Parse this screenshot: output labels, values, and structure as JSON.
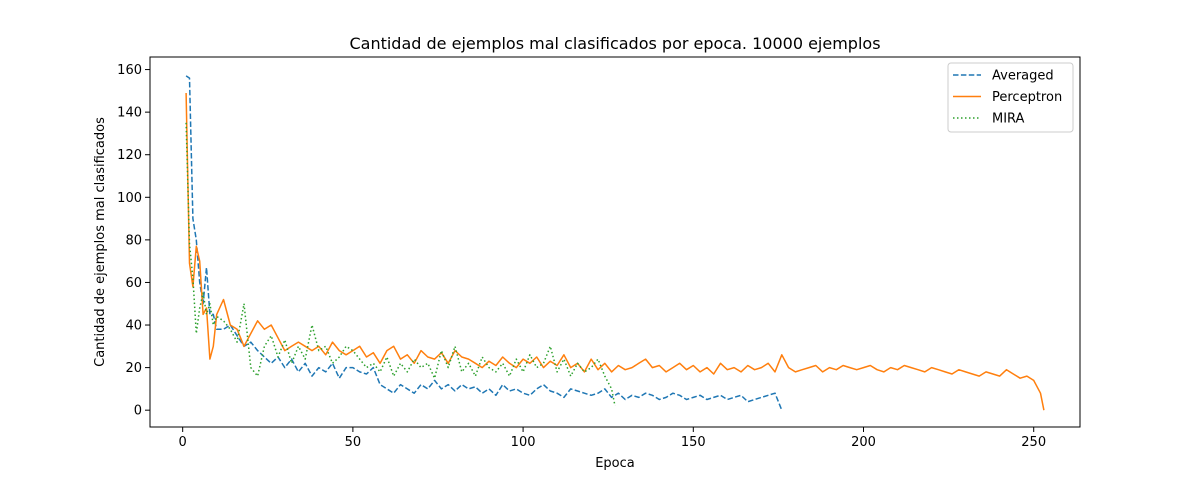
{
  "chart_data": {
    "type": "line",
    "title": "Cantidad de ejemplos mal clasificados por epoca. 10000 ejemplos",
    "xlabel": "Epoca",
    "ylabel": "Cantidad de ejemplos mal clasificados",
    "xlim": [
      -9.6,
      263.6
    ],
    "ylim": [
      -7.9,
      165.9
    ],
    "xticks": [
      0,
      50,
      100,
      150,
      200,
      250
    ],
    "yticks": [
      0,
      20,
      40,
      60,
      80,
      100,
      120,
      140,
      160
    ],
    "grid": false,
    "legend_position": "top-right",
    "series": [
      {
        "name": "Averaged",
        "color": "#1f77b4",
        "dash": "dashed",
        "x": [
          1,
          2,
          3,
          4,
          5,
          6,
          7,
          8,
          9,
          10,
          12,
          14,
          16,
          18,
          20,
          22,
          24,
          26,
          28,
          30,
          32,
          34,
          36,
          38,
          40,
          42,
          44,
          46,
          48,
          50,
          52,
          54,
          56,
          58,
          60,
          62,
          64,
          66,
          68,
          70,
          72,
          74,
          76,
          78,
          80,
          82,
          84,
          86,
          88,
          90,
          92,
          94,
          96,
          98,
          100,
          102,
          104,
          106,
          108,
          110,
          112,
          114,
          116,
          118,
          120,
          122,
          124,
          126,
          128,
          130,
          132,
          134,
          136,
          138,
          140,
          142,
          144,
          146,
          148,
          150,
          152,
          154,
          156,
          158,
          160,
          162,
          164,
          166,
          168,
          170,
          172,
          174,
          176
        ],
        "y": [
          157,
          156,
          90,
          80,
          60,
          50,
          67,
          45,
          45,
          38,
          38,
          40,
          35,
          30,
          32,
          28,
          25,
          22,
          25,
          20,
          24,
          18,
          22,
          16,
          20,
          18,
          22,
          15,
          20,
          20,
          18,
          17,
          20,
          12,
          10,
          8,
          12,
          10,
          8,
          12,
          10,
          14,
          10,
          12,
          9,
          12,
          10,
          11,
          8,
          10,
          7,
          12,
          9,
          10,
          8,
          7,
          10,
          12,
          9,
          8,
          6,
          10,
          9,
          8,
          7,
          8,
          10,
          6,
          8,
          5,
          7,
          6,
          8,
          7,
          5,
          6,
          8,
          7,
          5,
          6,
          7,
          5,
          6,
          7,
          5,
          6,
          7,
          4,
          5,
          6,
          7,
          8,
          0
        ]
      },
      {
        "name": "Perceptron",
        "color": "#ff7f0e",
        "dash": "solid",
        "x": [
          1,
          2,
          3,
          4,
          5,
          6,
          7,
          8,
          9,
          10,
          12,
          14,
          16,
          18,
          20,
          22,
          24,
          26,
          28,
          30,
          32,
          34,
          36,
          38,
          40,
          42,
          44,
          46,
          48,
          50,
          52,
          54,
          56,
          58,
          60,
          62,
          64,
          66,
          68,
          70,
          72,
          74,
          76,
          78,
          80,
          82,
          84,
          86,
          88,
          90,
          92,
          94,
          96,
          98,
          100,
          102,
          104,
          106,
          108,
          110,
          112,
          114,
          116,
          118,
          120,
          122,
          124,
          126,
          128,
          130,
          132,
          134,
          136,
          138,
          140,
          142,
          144,
          146,
          148,
          150,
          152,
          154,
          156,
          158,
          160,
          162,
          164,
          166,
          168,
          170,
          172,
          174,
          176,
          178,
          180,
          182,
          184,
          186,
          188,
          190,
          192,
          194,
          196,
          198,
          200,
          202,
          204,
          206,
          208,
          210,
          212,
          214,
          216,
          218,
          220,
          222,
          224,
          226,
          228,
          230,
          232,
          234,
          236,
          238,
          240,
          242,
          244,
          246,
          248,
          250,
          252,
          253
        ],
        "y": [
          149,
          69,
          58,
          77,
          70,
          45,
          48,
          24,
          30,
          45,
          52,
          40,
          38,
          30,
          36,
          42,
          38,
          40,
          34,
          28,
          30,
          32,
          30,
          28,
          30,
          26,
          32,
          28,
          26,
          28,
          30,
          25,
          27,
          22,
          28,
          30,
          24,
          26,
          22,
          28,
          25,
          24,
          27,
          22,
          28,
          25,
          24,
          22,
          20,
          23,
          21,
          25,
          22,
          20,
          24,
          22,
          25,
          20,
          23,
          21,
          26,
          20,
          22,
          18,
          24,
          19,
          22,
          18,
          21,
          19,
          20,
          22,
          24,
          20,
          21,
          18,
          20,
          22,
          19,
          21,
          18,
          20,
          17,
          22,
          19,
          20,
          18,
          21,
          19,
          20,
          22,
          18,
          26,
          20,
          18,
          19,
          20,
          21,
          18,
          20,
          19,
          21,
          20,
          19,
          20,
          21,
          19,
          18,
          20,
          19,
          21,
          20,
          19,
          18,
          20,
          19,
          18,
          17,
          19,
          18,
          17,
          16,
          18,
          17,
          16,
          19,
          17,
          15,
          16,
          14,
          8,
          0
        ]
      },
      {
        "name": "MIRA",
        "color": "#2ca02c",
        "dash": "dotted",
        "x": [
          1,
          2,
          3,
          4,
          5,
          6,
          7,
          8,
          9,
          10,
          12,
          14,
          16,
          18,
          20,
          22,
          24,
          26,
          28,
          30,
          32,
          34,
          36,
          38,
          40,
          42,
          44,
          46,
          48,
          50,
          52,
          54,
          56,
          58,
          60,
          62,
          64,
          66,
          68,
          70,
          72,
          74,
          76,
          78,
          80,
          82,
          84,
          86,
          88,
          90,
          92,
          94,
          96,
          98,
          100,
          102,
          104,
          106,
          108,
          110,
          112,
          114,
          116,
          118,
          120,
          122,
          124,
          126,
          127
        ],
        "y": [
          135,
          78,
          62,
          36,
          48,
          55,
          45,
          50,
          40,
          44,
          42,
          38,
          32,
          50,
          20,
          16,
          30,
          35,
          25,
          33,
          22,
          30,
          24,
          40,
          28,
          30,
          22,
          25,
          30,
          28,
          24,
          20,
          22,
          18,
          25,
          16,
          22,
          18,
          24,
          20,
          22,
          15,
          28,
          20,
          30,
          18,
          22,
          16,
          25,
          20,
          18,
          22,
          16,
          24,
          18,
          26,
          20,
          22,
          30,
          18,
          24,
          16,
          22,
          18,
          20,
          24,
          16,
          10,
          2
        ]
      }
    ]
  }
}
